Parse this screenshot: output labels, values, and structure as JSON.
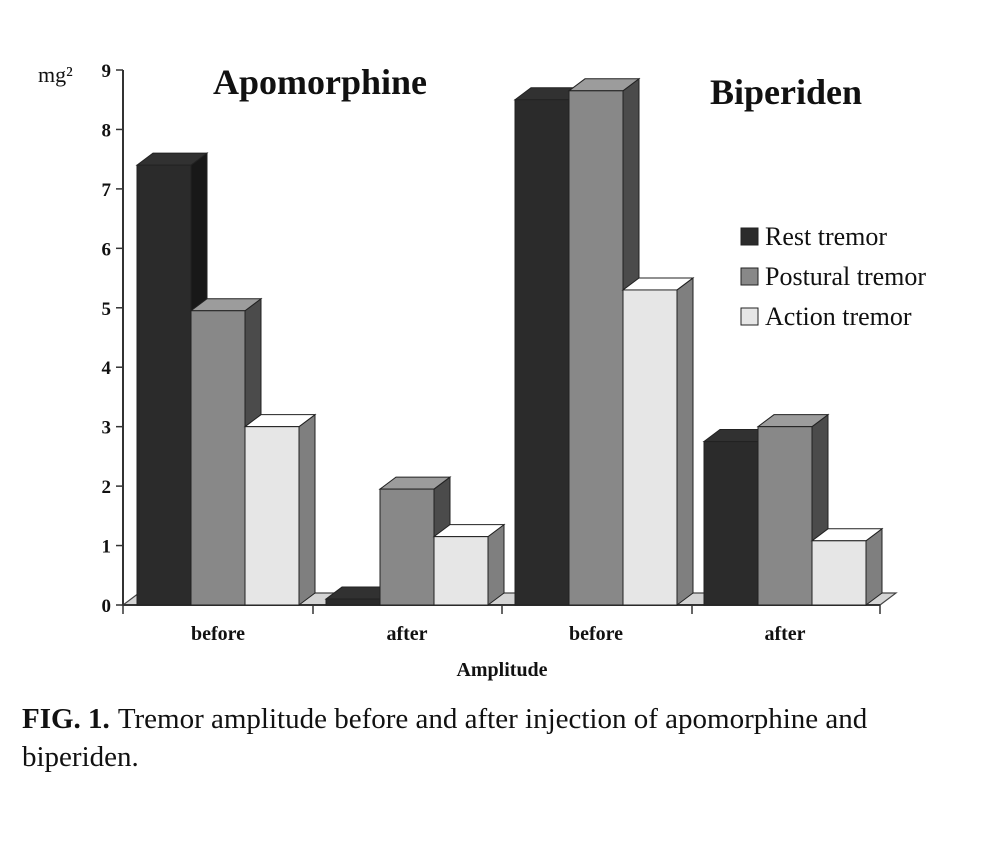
{
  "chart_data": {
    "type": "bar",
    "y_unit_label": "mg²",
    "ylim": [
      0,
      9
    ],
    "y_ticks": [
      "0",
      "1",
      "2",
      "3",
      "4",
      "5",
      "6",
      "7",
      "8",
      "9"
    ],
    "xlabel": "Amplitude",
    "categories": [
      "before",
      "after",
      "before",
      "after"
    ],
    "group_titles": [
      "Apomorphine",
      "Biperiden"
    ],
    "series": [
      {
        "name": "Rest tremor",
        "color": "#2b2b2b",
        "values": [
          7.4,
          0.1,
          8.5,
          2.75
        ]
      },
      {
        "name": "Postural tremor",
        "color": "#888888",
        "values": [
          4.95,
          1.95,
          8.65,
          3.0
        ]
      },
      {
        "name": "Action tremor",
        "color": "#e6e6e6",
        "values": [
          3.0,
          1.15,
          5.3,
          1.08
        ]
      }
    ],
    "legend_position": "right"
  },
  "caption": {
    "label": "FIG. 1.",
    "text": "Tremor amplitude before and after injection of apomorphine and biperiden."
  }
}
